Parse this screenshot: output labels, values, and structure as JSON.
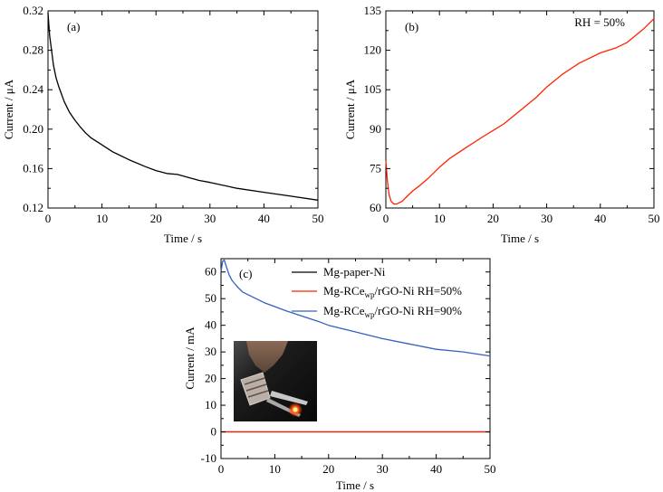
{
  "chart_data": [
    {
      "panel": "(a)",
      "type": "line",
      "annotation": "",
      "xlabel": "Time / s",
      "ylabel": "Current / μA",
      "xlim": [
        0,
        50
      ],
      "ylim": [
        0.12,
        0.32
      ],
      "xticks": [
        0,
        10,
        20,
        30,
        40,
        50
      ],
      "yticks": [
        0.12,
        0.16,
        0.2,
        0.24,
        0.28,
        0.32
      ],
      "ytick_labels": [
        "0.12",
        "0.16",
        "0.20",
        "0.24",
        "0.28",
        "0.32"
      ],
      "series": [
        {
          "color": "#000000",
          "x": [
            0,
            0.3,
            0.7,
            1,
            1.5,
            2,
            3,
            4,
            5,
            6,
            7,
            8,
            10,
            12,
            15,
            18,
            20,
            22,
            24,
            26,
            28,
            30,
            35,
            40,
            45,
            50
          ],
          "y": [
            0.318,
            0.295,
            0.278,
            0.265,
            0.252,
            0.243,
            0.228,
            0.217,
            0.209,
            0.202,
            0.196,
            0.191,
            0.184,
            0.177,
            0.169,
            0.162,
            0.158,
            0.155,
            0.154,
            0.151,
            0.148,
            0.146,
            0.14,
            0.136,
            0.132,
            0.128
          ]
        }
      ]
    },
    {
      "panel": "(b)",
      "type": "line",
      "annotation": "RH = 50%",
      "xlabel": "Time / s",
      "ylabel": "Current / μA",
      "xlim": [
        0,
        50
      ],
      "ylim": [
        60,
        135
      ],
      "xticks": [
        0,
        10,
        20,
        30,
        40,
        50
      ],
      "yticks": [
        60,
        75,
        90,
        105,
        120,
        135
      ],
      "ytick_labels": [
        "60",
        "75",
        "90",
        "105",
        "120",
        "135"
      ],
      "series": [
        {
          "color": "#ff2200",
          "x": [
            0,
            0.3,
            0.6,
            1,
            1.5,
            2,
            3,
            4,
            5,
            6,
            8,
            10,
            12,
            15,
            18,
            20,
            22,
            25,
            28,
            30,
            33,
            36,
            40,
            43,
            45,
            48,
            50
          ],
          "y": [
            78,
            70,
            65,
            62.5,
            61.5,
            61.5,
            62.5,
            64.5,
            66.5,
            68,
            71.5,
            75.5,
            79,
            83,
            87,
            89.5,
            92,
            97,
            102,
            106,
            111,
            115,
            119,
            121,
            123,
            128,
            132
          ]
        }
      ]
    },
    {
      "panel": "(c)",
      "type": "line",
      "annotation": "",
      "xlabel": "Time / s",
      "ylabel": "Current / mA",
      "xlim": [
        0,
        50
      ],
      "ylim": [
        -10,
        65
      ],
      "xticks": [
        0,
        10,
        20,
        30,
        40,
        50
      ],
      "yticks": [
        -10,
        0,
        10,
        20,
        30,
        40,
        50,
        60
      ],
      "ytick_labels": [
        "-10",
        "0",
        "10",
        "20",
        "30",
        "40",
        "50",
        "60"
      ],
      "series": [
        {
          "name": "Mg-paper-Ni",
          "color": "#000000",
          "x": [
            0,
            50
          ],
          "y": [
            0,
            0
          ]
        },
        {
          "name": "Mg-RCewp/rGO-Ni RH=50%",
          "legend_parts": [
            "Mg-RCe",
            "wp",
            "/rGO-Ni RH=50%"
          ],
          "color": "#ff2200",
          "x": [
            0,
            50
          ],
          "y": [
            0,
            0
          ]
        },
        {
          "name": "Mg-RCewp/rGO-Ni RH=90%",
          "legend_parts": [
            "Mg-RCe",
            "wp",
            "/rGO-Ni RH=90%"
          ],
          "color": "#3560c0",
          "x": [
            0,
            0.3,
            0.6,
            1,
            1.5,
            2,
            3,
            4,
            5,
            6,
            8,
            10,
            12,
            15,
            18,
            20,
            25,
            30,
            35,
            40,
            45,
            50
          ],
          "y": [
            60,
            64,
            64.5,
            62,
            59,
            57,
            54.5,
            52.5,
            51.5,
            50.5,
            48.5,
            47,
            45.5,
            43.5,
            41.5,
            40,
            37.5,
            35,
            33,
            31,
            30,
            28.5
          ]
        }
      ]
    }
  ]
}
